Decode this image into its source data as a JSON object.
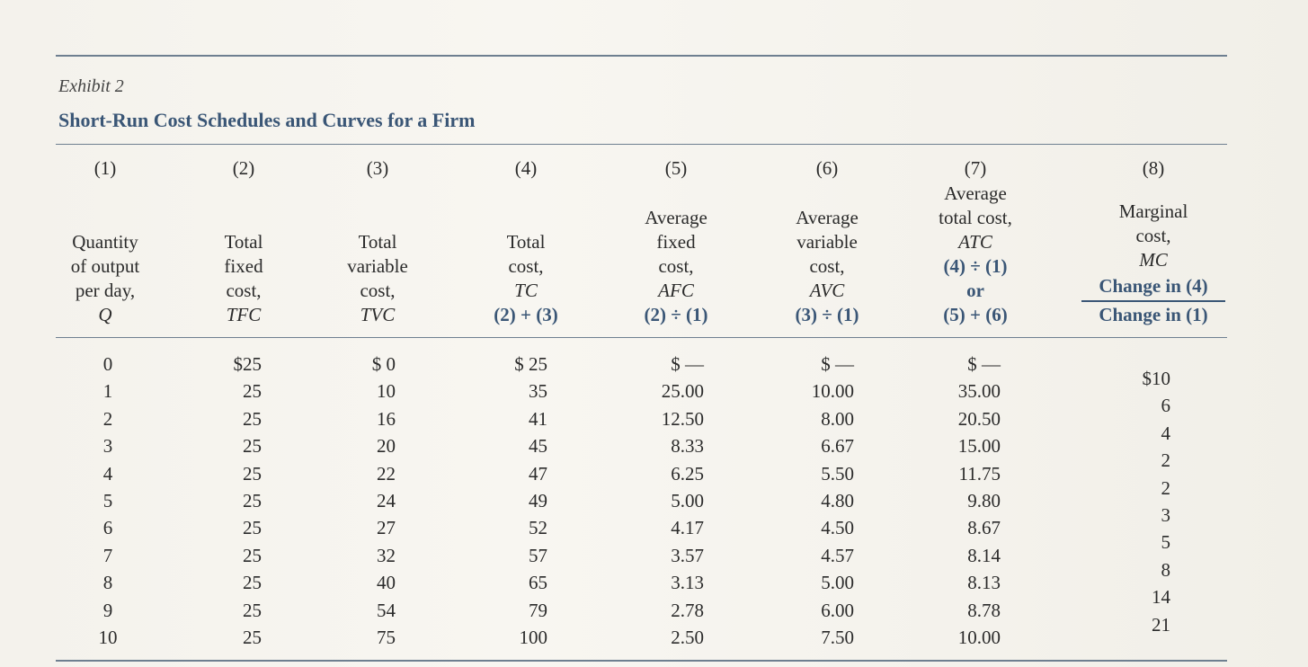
{
  "exhibit": "Exhibit 2",
  "title": "Short-Run Cost Schedules and Curves for a Firm",
  "columns": [
    {
      "number": "(1)",
      "lines": [
        "Quantity",
        "of output",
        "per day,",
        "Q"
      ]
    },
    {
      "number": "(2)",
      "lines": [
        "Total",
        "fixed",
        "cost,",
        "TFC"
      ]
    },
    {
      "number": "(3)",
      "lines": [
        "Total",
        "variable",
        "cost,",
        "TVC"
      ]
    },
    {
      "number": "(4)",
      "lines": [
        "Total",
        "cost,",
        "TC",
        "(2) + (3)"
      ]
    },
    {
      "number": "(5)",
      "lines": [
        "Average",
        "fixed",
        "cost,",
        "AFC",
        "(2) ÷ (1)"
      ]
    },
    {
      "number": "(6)",
      "lines": [
        "Average",
        "variable",
        "cost,",
        "AVC",
        "(3) ÷ (1)"
      ]
    },
    {
      "number": "(7)",
      "lines": [
        "Average",
        "total cost,",
        "ATC",
        "(4) ÷ (1)",
        "or",
        "(5) + (6)"
      ]
    },
    {
      "number": "(8)",
      "lines": [
        "Marginal",
        "cost,",
        "MC"
      ],
      "numerator": "Change in (4)",
      "denominator": "Change in (1)"
    }
  ],
  "rows": [
    [
      "0",
      "$25",
      "$ 0",
      "$ 25",
      "$ —",
      "$ —",
      "$ —"
    ],
    [
      "1",
      "25",
      "10",
      "35",
      "25.00",
      "10.00",
      "35.00"
    ],
    [
      "2",
      "25",
      "16",
      "41",
      "12.50",
      "8.00",
      "20.50"
    ],
    [
      "3",
      "25",
      "20",
      "45",
      "8.33",
      "6.67",
      "15.00"
    ],
    [
      "4",
      "25",
      "22",
      "47",
      "6.25",
      "5.50",
      "11.75"
    ],
    [
      "5",
      "25",
      "24",
      "49",
      "5.00",
      "4.80",
      "9.80"
    ],
    [
      "6",
      "25",
      "27",
      "52",
      "4.17",
      "4.50",
      "8.67"
    ],
    [
      "7",
      "25",
      "32",
      "57",
      "3.57",
      "4.57",
      "8.14"
    ],
    [
      "8",
      "25",
      "40",
      "65",
      "3.13",
      "5.00",
      "8.13"
    ],
    [
      "9",
      "25",
      "54",
      "79",
      "2.78",
      "6.00",
      "8.78"
    ],
    [
      "10",
      "25",
      "75",
      "100",
      "2.50",
      "7.50",
      "10.00"
    ]
  ],
  "marginal": [
    "$10",
    "6",
    "4",
    "2",
    "2",
    "3",
    "5",
    "8",
    "14",
    "21"
  ]
}
